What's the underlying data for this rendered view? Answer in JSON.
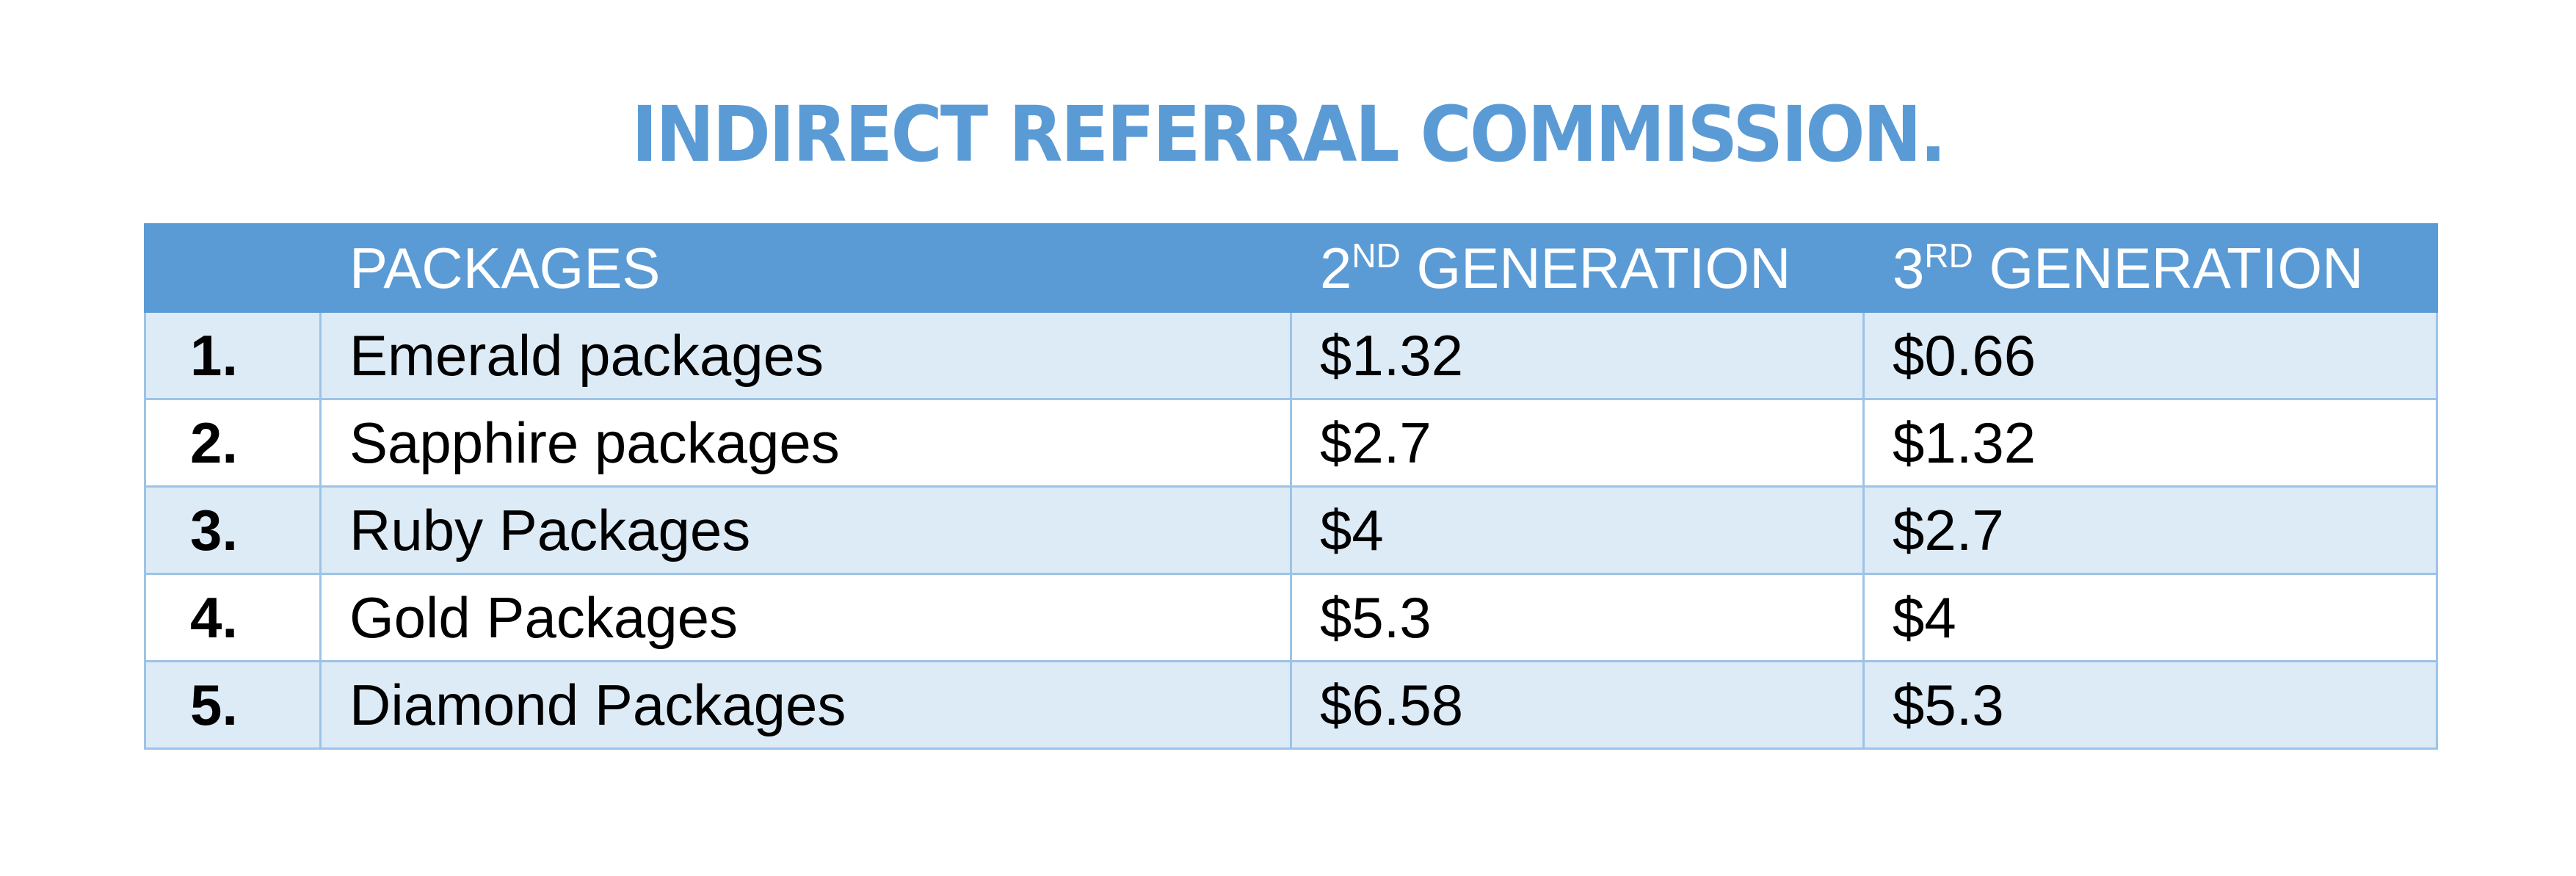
{
  "document": {
    "title": "INDIRECT REFERRAL COMMISSION.",
    "colors": {
      "accent": "#5b9bd5",
      "band": "#ddebf7",
      "border": "#9dc3e6",
      "header_text": "#ffffff",
      "body_text": "#000000"
    }
  },
  "table": {
    "headers": {
      "number": "",
      "packages": "PACKAGES",
      "gen2_prefix": "2",
      "gen2_sup": "ND",
      "gen2_suffix": " GENERATION",
      "gen3_prefix": "3",
      "gen3_sup": "RD",
      "gen3_suffix": " GENERATION"
    },
    "rows": [
      {
        "number": "1.",
        "package": "Emerald packages",
        "gen2": "$1.32",
        "gen3": "$0.66"
      },
      {
        "number": "2.",
        "package": "Sapphire packages",
        "gen2": "$2.7",
        "gen3": "$1.32"
      },
      {
        "number": "3.",
        "package": "Ruby Packages",
        "gen2": "$4",
        "gen3": "$2.7"
      },
      {
        "number": "4.",
        "package": "Gold Packages",
        "gen2": "$5.3",
        "gen3": "$4"
      },
      {
        "number": "5.",
        "package": "Diamond Packages",
        "gen2": "$6.58",
        "gen3": "$5.3"
      }
    ]
  }
}
